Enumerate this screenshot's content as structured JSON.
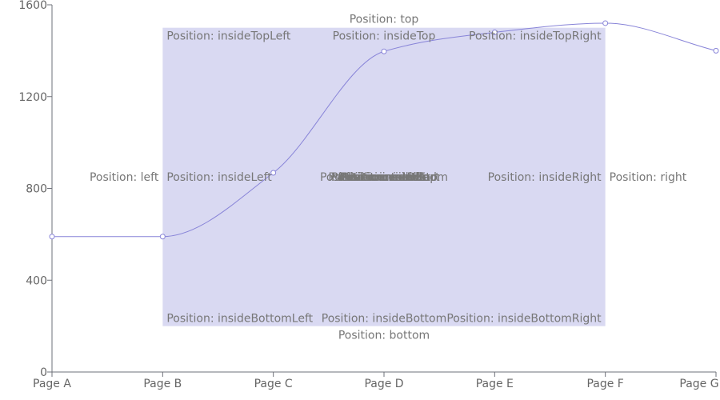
{
  "chart_data": {
    "type": "line",
    "smooth": true,
    "categories": [
      "Page A",
      "Page B",
      "Page C",
      "Page D",
      "Page E",
      "Page F",
      "Page G"
    ],
    "series": [
      {
        "values": [
          590,
          590,
          868,
          1397,
          1480,
          1520,
          1400
        ]
      }
    ],
    "ylim": [
      0,
      1600
    ],
    "yticks": [
      0,
      400,
      800,
      1200,
      1600
    ],
    "grid": false,
    "colors": {
      "line": "#8884d8",
      "area": "#ccccee",
      "axis": "#6E7079",
      "text": "#777777"
    },
    "reference_area": {
      "x1": "Page B",
      "x2": "Page F",
      "y1": 200,
      "y2": 1500,
      "label_positions": [
        "top",
        "insideTopLeft",
        "insideTop",
        "insideTopRight",
        "left",
        "insideLeft",
        "insideRight",
        "right",
        "insideBottomLeft",
        "insideBottom",
        "insideBottomRight",
        "bottom"
      ],
      "overlapping_center_labels": [
        "Position: inside",
        "Position: center",
        "Position: insideStart",
        "Position: insideEnd",
        "Position: end",
        "Position: middle",
        "Position: outside",
        "Position: centerTop",
        "Position: centerBottom"
      ],
      "labels": {
        "top": "Position: top",
        "insideTopLeft": "Position: insideTopLeft",
        "insideTop": "Position: insideTop",
        "insideTopRight": "Position: insideTopRight",
        "left": "Position: left",
        "insideLeft": "Position: insideLeft",
        "insideRight": "Position: insideRight",
        "right": "Position: right",
        "insideBottomLeft": "Position: insideBottomLeft",
        "insideBottom": "Position: insideBottom",
        "insideBottomRight": "Position: insideBottomRight",
        "bottom": "Position: bottom"
      }
    }
  }
}
